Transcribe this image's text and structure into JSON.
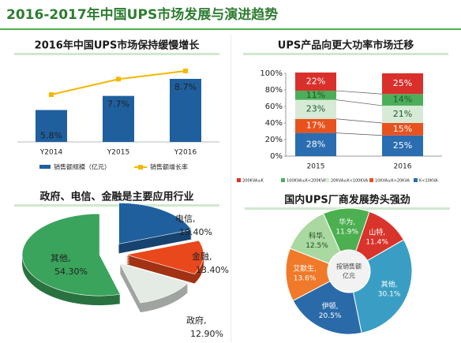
{
  "title": "2016-2017年中国UPS市场发展与演进趋势",
  "chart_data": [
    {
      "type": "combo",
      "title": "2016年中国UPS市场保持缓慢增长",
      "categories": [
        "Y2014",
        "Y2015",
        "Y2016"
      ],
      "series": [
        {
          "name": "销售额规模（亿元）",
          "type": "bar",
          "color": "#1f5f9e",
          "values": [
            43,
            62,
            85
          ]
        },
        {
          "name": "销售额增长率",
          "type": "line",
          "color": "#f5b800",
          "values": [
            5.8,
            7.7,
            8.7
          ],
          "value_labels": [
            "5.8%",
            "7.7%",
            "8.7%"
          ]
        }
      ]
    },
    {
      "type": "bar",
      "stacked": true,
      "title": "UPS产品向更大功率市场迁移",
      "categories": [
        "2015",
        "2016"
      ],
      "ylim": [
        0,
        100
      ],
      "yticks": [
        {
          "value": 0,
          "label": "0%"
        },
        {
          "value": 20,
          "label": "20%"
        },
        {
          "value": 40,
          "label": "40%"
        },
        {
          "value": 60,
          "label": "60%"
        },
        {
          "value": 80,
          "label": "80%"
        },
        {
          "value": 100,
          "label": "100%"
        }
      ],
      "series": [
        {
          "name": "K<10KVA",
          "color": "#2a6db0",
          "values": [
            28,
            25
          ],
          "value_labels": [
            "28%",
            "25%"
          ]
        },
        {
          "name": "10KVA≤K<20KVA",
          "color": "#e8521e",
          "values": [
            17,
            15
          ],
          "value_labels": [
            "17%",
            "15%"
          ]
        },
        {
          "name": "20KVA≤K<100KVA",
          "color": "#d6ead6",
          "values": [
            23,
            21
          ],
          "value_labels": [
            "23%",
            "21%"
          ]
        },
        {
          "name": "100KVA≤K<200KVA",
          "color": "#4cae5a",
          "values": [
            11,
            14
          ],
          "value_labels": [
            "11%",
            "14%"
          ]
        },
        {
          "name": "200KVA≤K",
          "color": "#d9302b",
          "values": [
            22,
            25
          ],
          "value_labels": [
            "22%",
            "25%"
          ]
        }
      ]
    },
    {
      "type": "pie",
      "exploded": true,
      "title": "政府、电信、金融是主要应用行业",
      "categories": [
        "电信,",
        "金融,",
        "政府,",
        "其他,"
      ],
      "values": [
        19.4,
        13.4,
        12.9,
        54.3
      ],
      "value_labels": [
        "19.40%",
        "13.40%",
        "12.90%",
        "54.30%"
      ],
      "colors": [
        "#1f5f9e",
        "#e8481c",
        "#e4eae4",
        "#3aa35c"
      ]
    },
    {
      "type": "donut",
      "title": "国内UPS厂商发展势头强劲",
      "center_label": [
        "按销售额",
        "亿元"
      ],
      "categories": [
        "山特,",
        "其他,",
        "伊顿,",
        "艾默生,",
        "科华,",
        "华为,"
      ],
      "values": [
        11.4,
        30.1,
        20.5,
        13.6,
        12.5,
        11.9
      ],
      "value_labels": [
        "11.4%",
        "30.1%",
        "20.5%",
        "13.6%",
        "12.5%",
        "11.9%"
      ],
      "colors": [
        "#d9342b",
        "#3a9ec4",
        "#2a6aa8",
        "#f07a2a",
        "#a9d8a0",
        "#4caf50"
      ]
    }
  ]
}
